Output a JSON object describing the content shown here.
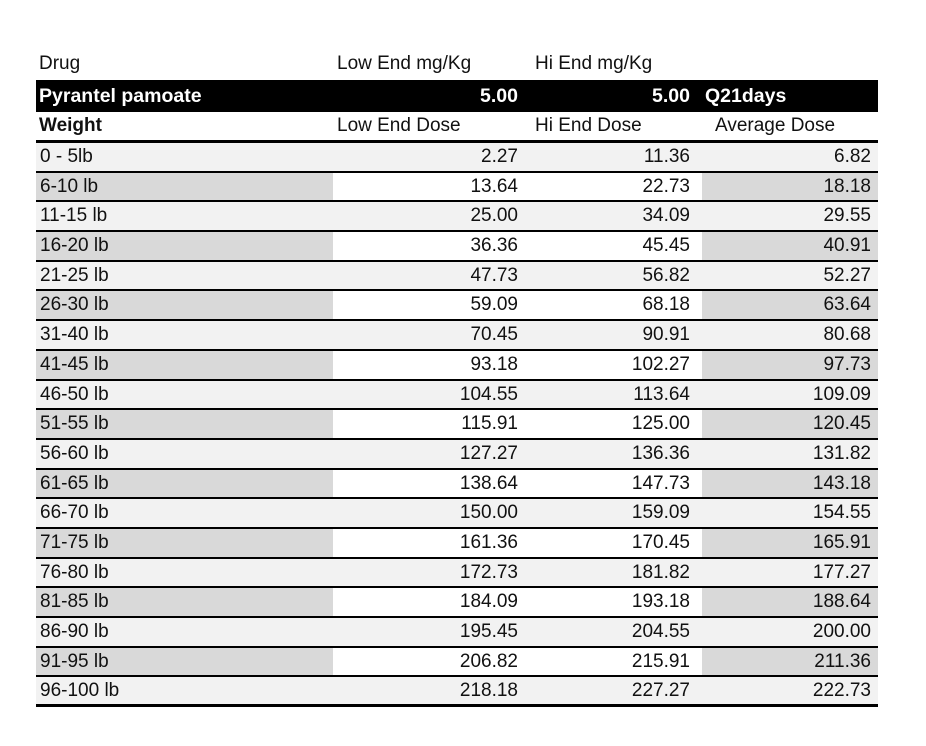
{
  "colors": {
    "band_background": "#000000",
    "band_text": "#ffffff",
    "light_row": "#f2f2f2",
    "shaded_cell": "#d9d9d9",
    "rule": "#000000",
    "text": "#111111"
  },
  "drug_header": {
    "drug": "Drug",
    "low_end": "Low End mg/Kg",
    "hi_end": "Hi End mg/Kg"
  },
  "drug_band": {
    "name": "Pyrantel pamoate",
    "low_end_mg_kg": "5.00",
    "hi_end_mg_kg": "5.00",
    "frequency": "Q21days"
  },
  "dose_header": {
    "weight": "Weight",
    "low_end": "Low End Dose",
    "hi_end": "Hi End Dose",
    "average": "Average Dose"
  },
  "table": {
    "rows": [
      {
        "weight": "0 - 5lb",
        "low": "2.27",
        "hi": "11.36",
        "avg": "6.82",
        "shaded": false
      },
      {
        "weight": "6-10 lb",
        "low": "13.64",
        "hi": "22.73",
        "avg": "18.18",
        "shaded": true
      },
      {
        "weight": "11-15 lb",
        "low": "25.00",
        "hi": "34.09",
        "avg": "29.55",
        "shaded": false
      },
      {
        "weight": "16-20 lb",
        "low": "36.36",
        "hi": "45.45",
        "avg": "40.91",
        "shaded": true
      },
      {
        "weight": "21-25 lb",
        "low": "47.73",
        "hi": "56.82",
        "avg": "52.27",
        "shaded": false
      },
      {
        "weight": "26-30 lb",
        "low": "59.09",
        "hi": "68.18",
        "avg": "63.64",
        "shaded": true
      },
      {
        "weight": "31-40 lb",
        "low": "70.45",
        "hi": "90.91",
        "avg": "80.68",
        "shaded": false
      },
      {
        "weight": "41-45 lb",
        "low": "93.18",
        "hi": "102.27",
        "avg": "97.73",
        "shaded": true
      },
      {
        "weight": "46-50 lb",
        "low": "104.55",
        "hi": "113.64",
        "avg": "109.09",
        "shaded": false
      },
      {
        "weight": "51-55 lb",
        "low": "115.91",
        "hi": "125.00",
        "avg": "120.45",
        "shaded": true
      },
      {
        "weight": "56-60 lb",
        "low": "127.27",
        "hi": "136.36",
        "avg": "131.82",
        "shaded": false
      },
      {
        "weight": "61-65 lb",
        "low": "138.64",
        "hi": "147.73",
        "avg": "143.18",
        "shaded": true
      },
      {
        "weight": "66-70 lb",
        "low": "150.00",
        "hi": "159.09",
        "avg": "154.55",
        "shaded": false
      },
      {
        "weight": "71-75 lb",
        "low": "161.36",
        "hi": "170.45",
        "avg": "165.91",
        "shaded": true
      },
      {
        "weight": "76-80 lb",
        "low": "172.73",
        "hi": "181.82",
        "avg": "177.27",
        "shaded": false
      },
      {
        "weight": "81-85 lb",
        "low": "184.09",
        "hi": "193.18",
        "avg": "188.64",
        "shaded": true
      },
      {
        "weight": "86-90 lb",
        "low": "195.45",
        "hi": "204.55",
        "avg": "200.00",
        "shaded": false
      },
      {
        "weight": "91-95 lb",
        "low": "206.82",
        "hi": "215.91",
        "avg": "211.36",
        "shaded": true
      },
      {
        "weight": "96-100 lb",
        "low": "218.18",
        "hi": "227.27",
        "avg": "222.73",
        "shaded": false
      }
    ]
  }
}
